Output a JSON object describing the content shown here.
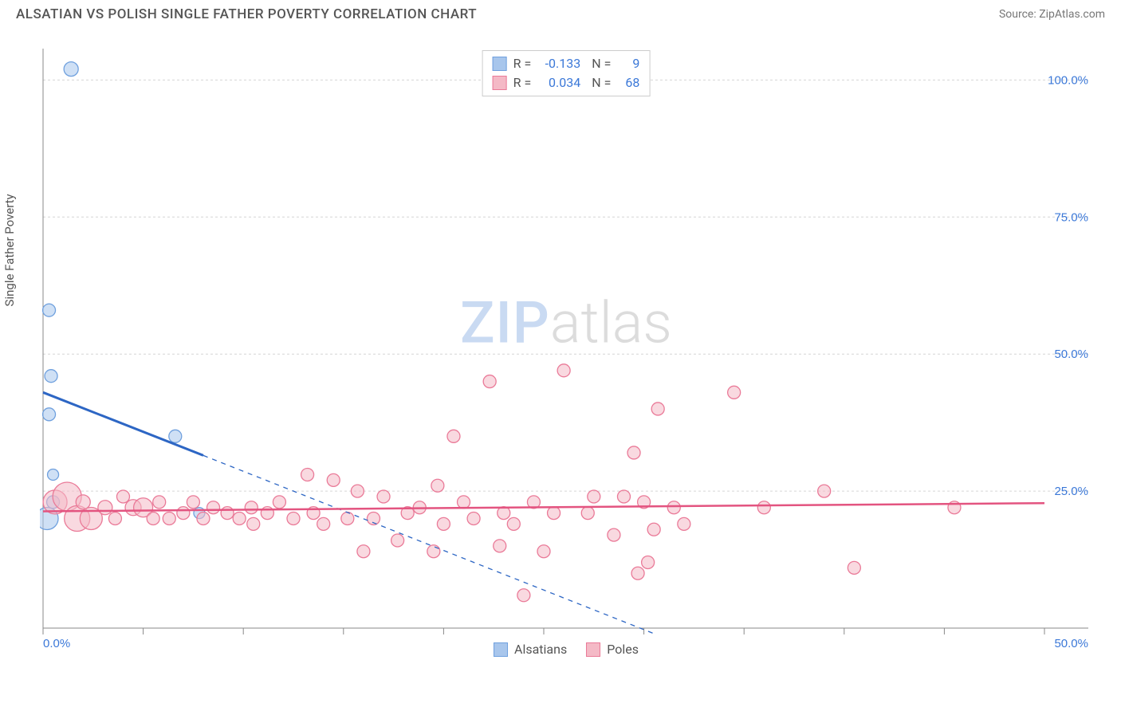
{
  "header": {
    "title": "ALSATIAN VS POLISH SINGLE FATHER POVERTY CORRELATION CHART",
    "source": "Source: ZipAtlas.com"
  },
  "y_axis_label": "Single Father Poverty",
  "watermark": {
    "zip": "ZIP",
    "atlas": "atlas"
  },
  "chart": {
    "type": "scatter",
    "xlim": [
      0,
      50
    ],
    "ylim": [
      0,
      105
    ],
    "x_ticks": [
      0,
      5,
      10,
      15,
      20,
      25,
      30,
      35,
      40,
      45,
      50
    ],
    "x_tick_labels_shown": {
      "0": "0.0%",
      "50": "50.0%"
    },
    "y_ticks": [
      25,
      50,
      75,
      100
    ],
    "y_tick_labels": {
      "25": "25.0%",
      "50": "50.0%",
      "75": "75.0%",
      "100": "100.0%"
    },
    "grid_color": "#d6d6d6",
    "axis_color": "#888888",
    "background_color": "#ffffff",
    "series": [
      {
        "name": "Alsatians",
        "color_fill": "#a8c6ec",
        "color_stroke": "#6fa0de",
        "fill_opacity": 0.55,
        "points": [
          {
            "x": 1.4,
            "y": 102,
            "r": 9
          },
          {
            "x": 0.3,
            "y": 58,
            "r": 8
          },
          {
            "x": 0.4,
            "y": 46,
            "r": 8
          },
          {
            "x": 0.3,
            "y": 39,
            "r": 8
          },
          {
            "x": 0.5,
            "y": 28,
            "r": 7
          },
          {
            "x": 0.2,
            "y": 20,
            "r": 14
          },
          {
            "x": 0.5,
            "y": 23,
            "r": 8
          },
          {
            "x": 6.6,
            "y": 35,
            "r": 8
          },
          {
            "x": 7.8,
            "y": 21,
            "r": 7
          }
        ],
        "trend": {
          "solid_start": {
            "x": 0,
            "y": 43
          },
          "solid_end": {
            "x": 8,
            "y": 31.5
          },
          "dash_start": {
            "x": 8,
            "y": 31.5
          },
          "dash_end": {
            "x": 30.5,
            "y": -1
          },
          "color": "#2d66c4",
          "width": 3
        }
      },
      {
        "name": "Poles",
        "color_fill": "#f4b9c6",
        "color_stroke": "#ea7a98",
        "fill_opacity": 0.55,
        "points": [
          {
            "x": 0.6,
            "y": 23,
            "r": 15
          },
          {
            "x": 1.2,
            "y": 24,
            "r": 18
          },
          {
            "x": 1.7,
            "y": 20,
            "r": 16
          },
          {
            "x": 2.4,
            "y": 20,
            "r": 14
          },
          {
            "x": 2.0,
            "y": 23,
            "r": 9
          },
          {
            "x": 3.1,
            "y": 22,
            "r": 9
          },
          {
            "x": 3.6,
            "y": 20,
            "r": 8
          },
          {
            "x": 4.0,
            "y": 24,
            "r": 8
          },
          {
            "x": 4.5,
            "y": 22,
            "r": 10
          },
          {
            "x": 5.0,
            "y": 22,
            "r": 12
          },
          {
            "x": 5.5,
            "y": 20,
            "r": 8
          },
          {
            "x": 5.8,
            "y": 23,
            "r": 8
          },
          {
            "x": 6.3,
            "y": 20,
            "r": 8
          },
          {
            "x": 7.0,
            "y": 21,
            "r": 8
          },
          {
            "x": 7.5,
            "y": 23,
            "r": 8
          },
          {
            "x": 8.0,
            "y": 20,
            "r": 8
          },
          {
            "x": 8.5,
            "y": 22,
            "r": 8
          },
          {
            "x": 9.2,
            "y": 21,
            "r": 8
          },
          {
            "x": 9.8,
            "y": 20,
            "r": 8
          },
          {
            "x": 10.4,
            "y": 22,
            "r": 8
          },
          {
            "x": 10.5,
            "y": 19,
            "r": 8
          },
          {
            "x": 11.2,
            "y": 21,
            "r": 8
          },
          {
            "x": 11.8,
            "y": 23,
            "r": 8
          },
          {
            "x": 12.5,
            "y": 20,
            "r": 8
          },
          {
            "x": 13.2,
            "y": 28,
            "r": 8
          },
          {
            "x": 13.5,
            "y": 21,
            "r": 8
          },
          {
            "x": 14.0,
            "y": 19,
            "r": 8
          },
          {
            "x": 14.5,
            "y": 27,
            "r": 8
          },
          {
            "x": 15.2,
            "y": 20,
            "r": 8
          },
          {
            "x": 15.7,
            "y": 25,
            "r": 8
          },
          {
            "x": 16.0,
            "y": 14,
            "r": 8
          },
          {
            "x": 16.5,
            "y": 20,
            "r": 8
          },
          {
            "x": 17.0,
            "y": 24,
            "r": 8
          },
          {
            "x": 17.7,
            "y": 16,
            "r": 8
          },
          {
            "x": 18.2,
            "y": 21,
            "r": 8
          },
          {
            "x": 18.8,
            "y": 22,
            "r": 8
          },
          {
            "x": 19.5,
            "y": 14,
            "r": 8
          },
          {
            "x": 19.7,
            "y": 26,
            "r": 8
          },
          {
            "x": 20.0,
            "y": 19,
            "r": 8
          },
          {
            "x": 20.5,
            "y": 35,
            "r": 8
          },
          {
            "x": 21.0,
            "y": 23,
            "r": 8
          },
          {
            "x": 21.5,
            "y": 20,
            "r": 8
          },
          {
            "x": 22.3,
            "y": 45,
            "r": 8
          },
          {
            "x": 23.0,
            "y": 21,
            "r": 8
          },
          {
            "x": 23.5,
            "y": 19,
            "r": 8
          },
          {
            "x": 22.8,
            "y": 15,
            "r": 8
          },
          {
            "x": 24.0,
            "y": 6,
            "r": 8
          },
          {
            "x": 24.5,
            "y": 23,
            "r": 8
          },
          {
            "x": 25.0,
            "y": 14,
            "r": 8
          },
          {
            "x": 25.5,
            "y": 21,
            "r": 8
          },
          {
            "x": 26.0,
            "y": 47,
            "r": 8
          },
          {
            "x": 27.2,
            "y": 21,
            "r": 8
          },
          {
            "x": 27.5,
            "y": 24,
            "r": 8
          },
          {
            "x": 28.5,
            "y": 17,
            "r": 8
          },
          {
            "x": 29.0,
            "y": 24,
            "r": 8
          },
          {
            "x": 29.5,
            "y": 32,
            "r": 8
          },
          {
            "x": 29.7,
            "y": 10,
            "r": 8
          },
          {
            "x": 30.0,
            "y": 23,
            "r": 8
          },
          {
            "x": 30.5,
            "y": 18,
            "r": 8
          },
          {
            "x": 30.7,
            "y": 40,
            "r": 8
          },
          {
            "x": 30.2,
            "y": 12,
            "r": 8
          },
          {
            "x": 31.5,
            "y": 22,
            "r": 8
          },
          {
            "x": 32.0,
            "y": 19,
            "r": 8
          },
          {
            "x": 34.5,
            "y": 43,
            "r": 8
          },
          {
            "x": 36.0,
            "y": 22,
            "r": 8
          },
          {
            "x": 39.0,
            "y": 25,
            "r": 8
          },
          {
            "x": 40.5,
            "y": 11,
            "r": 8
          },
          {
            "x": 45.5,
            "y": 22,
            "r": 8
          }
        ],
        "trend": {
          "solid_start": {
            "x": 0,
            "y": 21.3
          },
          "solid_end": {
            "x": 50,
            "y": 22.8
          },
          "color": "#e35480",
          "width": 2.5
        }
      }
    ]
  },
  "legend_top": {
    "rows": [
      {
        "swatch_fill": "#a8c6ec",
        "swatch_stroke": "#6fa0de",
        "r_label": "R =",
        "r_val": "-0.133",
        "n_label": "N =",
        "n_val": "9"
      },
      {
        "swatch_fill": "#f4b9c6",
        "swatch_stroke": "#ea7a98",
        "r_label": "R =",
        "r_val": "0.034",
        "n_label": "N =",
        "n_val": "68"
      }
    ]
  },
  "legend_bottom": {
    "items": [
      {
        "swatch_fill": "#a8c6ec",
        "swatch_stroke": "#6fa0de",
        "label": "Alsatians"
      },
      {
        "swatch_fill": "#f4b9c6",
        "swatch_stroke": "#ea7a98",
        "label": "Poles"
      }
    ]
  }
}
